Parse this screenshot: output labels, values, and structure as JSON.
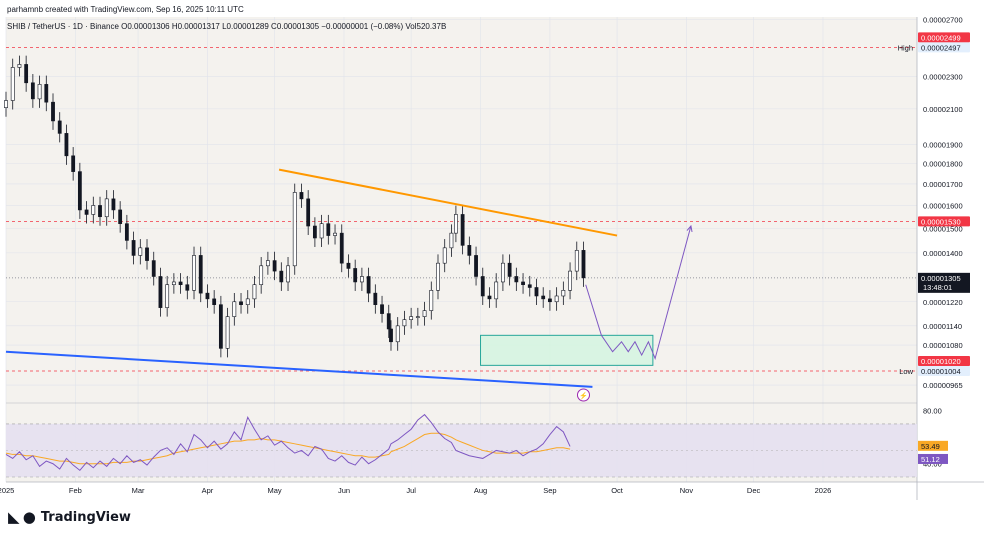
{
  "header": {
    "credit": "parhamnb created with TradingView.com, Sep 16, 2025 10:11 UTC",
    "symbol_line": "SHIB / TetherUS · 1D · Binance  O0.00001306  H0.00001317  L0.00001289  C0.00001305  −0.00000001 (−0.08%)  Vol520.37B"
  },
  "chart_data": {
    "type": "candlestick",
    "ylim": [
      9.2e-06,
      2.72e-05
    ],
    "y_scale": "log",
    "price_ticks": [
      "0.00002700",
      "0.00002300",
      "0.00002100",
      "0.00001900",
      "0.00001800",
      "0.00001700",
      "0.00001600",
      "0.00001500",
      "0.00001400",
      "0.00001220",
      "0.00001140",
      "0.00001080",
      "0.00000965"
    ],
    "month_ticks": [
      "2025",
      "Feb",
      "Mar",
      "Apr",
      "May",
      "Jun",
      "Jul",
      "Aug",
      "Sep",
      "Oct",
      "Nov",
      "Dec",
      "2026"
    ],
    "x_range": [
      "2025-01-01",
      "2026-02-12"
    ],
    "current_price": {
      "label": "0.00001305",
      "countdown": "13:48:01",
      "value": 1.305e-05,
      "color": "#131722"
    },
    "high_marker": {
      "tag": "High",
      "red_label": "0.00002499",
      "label": "0.00002497",
      "value": 2.497e-05
    },
    "low_marker": {
      "tag": "Low",
      "red_label": "0.00001020",
      "label": "0.00001004",
      "value": 1.004e-05
    },
    "resistance_level": {
      "label": "0.00001530",
      "value": 1.53e-05
    },
    "candles_daily_close": [
      [
        "2025-01-01",
        2.15e-05
      ],
      [
        "2025-01-04",
        2.36e-05
      ],
      [
        "2025-01-07",
        2.38e-05
      ],
      [
        "2025-01-10",
        2.26e-05
      ],
      [
        "2025-01-13",
        2.16e-05
      ],
      [
        "2025-01-16",
        2.25e-05
      ],
      [
        "2025-01-19",
        2.14e-05
      ],
      [
        "2025-01-22",
        2.03e-05
      ],
      [
        "2025-01-25",
        1.96e-05
      ],
      [
        "2025-01-28",
        1.84e-05
      ],
      [
        "2025-01-31",
        1.76e-05
      ],
      [
        "2025-02-03",
        1.58e-05
      ],
      [
        "2025-02-06",
        1.56e-05
      ],
      [
        "2025-02-09",
        1.6e-05
      ],
      [
        "2025-02-12",
        1.55e-05
      ],
      [
        "2025-02-15",
        1.63e-05
      ],
      [
        "2025-02-18",
        1.58e-05
      ],
      [
        "2025-02-21",
        1.52e-05
      ],
      [
        "2025-02-24",
        1.45e-05
      ],
      [
        "2025-02-27",
        1.39e-05
      ],
      [
        "2025-03-02",
        1.42e-05
      ],
      [
        "2025-03-05",
        1.37e-05
      ],
      [
        "2025-03-08",
        1.31e-05
      ],
      [
        "2025-03-11",
        1.2e-05
      ],
      [
        "2025-03-14",
        1.28e-05
      ],
      [
        "2025-03-17",
        1.29e-05
      ],
      [
        "2025-03-20",
        1.28e-05
      ],
      [
        "2025-03-23",
        1.26e-05
      ],
      [
        "2025-03-26",
        1.39e-05
      ],
      [
        "2025-03-29",
        1.25e-05
      ],
      [
        "2025-04-01",
        1.23e-05
      ],
      [
        "2025-04-04",
        1.21e-05
      ],
      [
        "2025-04-07",
        1.07e-05
      ],
      [
        "2025-04-10",
        1.17e-05
      ],
      [
        "2025-04-13",
        1.22e-05
      ],
      [
        "2025-04-16",
        1.21e-05
      ],
      [
        "2025-04-19",
        1.23e-05
      ],
      [
        "2025-04-22",
        1.28e-05
      ],
      [
        "2025-04-25",
        1.35e-05
      ],
      [
        "2025-04-28",
        1.37e-05
      ],
      [
        "2025-05-01",
        1.33e-05
      ],
      [
        "2025-05-04",
        1.29e-05
      ],
      [
        "2025-05-07",
        1.35e-05
      ],
      [
        "2025-05-10",
        1.66e-05
      ],
      [
        "2025-05-13",
        1.63e-05
      ],
      [
        "2025-05-16",
        1.51e-05
      ],
      [
        "2025-05-19",
        1.46e-05
      ],
      [
        "2025-05-22",
        1.52e-05
      ],
      [
        "2025-05-25",
        1.47e-05
      ],
      [
        "2025-05-28",
        1.48e-05
      ],
      [
        "2025-05-31",
        1.36e-05
      ],
      [
        "2025-06-03",
        1.34e-05
      ],
      [
        "2025-06-06",
        1.29e-05
      ],
      [
        "2025-06-09",
        1.31e-05
      ],
      [
        "2025-06-12",
        1.25e-05
      ],
      [
        "2025-06-15",
        1.21e-05
      ],
      [
        "2025-06-18",
        1.18e-05
      ],
      [
        "2025-06-21",
        1.13e-05
      ],
      [
        "2025-06-22",
        1.09e-05
      ],
      [
        "2025-06-25",
        1.14e-05
      ],
      [
        "2025-06-28",
        1.16e-05
      ],
      [
        "2025-07-01",
        1.17e-05
      ],
      [
        "2025-07-04",
        1.17e-05
      ],
      [
        "2025-07-07",
        1.19e-05
      ],
      [
        "2025-07-10",
        1.26e-05
      ],
      [
        "2025-07-13",
        1.36e-05
      ],
      [
        "2025-07-16",
        1.42e-05
      ],
      [
        "2025-07-19",
        1.48e-05
      ],
      [
        "2025-07-21",
        1.56e-05
      ],
      [
        "2025-07-24",
        1.43e-05
      ],
      [
        "2025-07-27",
        1.39e-05
      ],
      [
        "2025-07-30",
        1.31e-05
      ],
      [
        "2025-08-02",
        1.24e-05
      ],
      [
        "2025-08-05",
        1.23e-05
      ],
      [
        "2025-08-08",
        1.29e-05
      ],
      [
        "2025-08-11",
        1.36e-05
      ],
      [
        "2025-08-14",
        1.31e-05
      ],
      [
        "2025-08-17",
        1.29e-05
      ],
      [
        "2025-08-20",
        1.28e-05
      ],
      [
        "2025-08-23",
        1.27e-05
      ],
      [
        "2025-08-26",
        1.24e-05
      ],
      [
        "2025-08-29",
        1.23e-05
      ],
      [
        "2025-09-01",
        1.22e-05
      ],
      [
        "2025-09-04",
        1.24e-05
      ],
      [
        "2025-09-07",
        1.26e-05
      ],
      [
        "2025-09-10",
        1.33e-05
      ],
      [
        "2025-09-13",
        1.41e-05
      ],
      [
        "2025-09-16",
        1.305e-05
      ]
    ],
    "lines": [
      {
        "name": "",
        "color": "#ff9800",
        "points": [
          [
            "2025-05-03",
            1.77e-05
          ],
          [
            "2025-10-01",
            1.47e-05
          ]
        ]
      },
      {
        "name": "",
        "color": "#2962ff",
        "points": [
          [
            "2025-01-01",
            1.06e-05
          ],
          [
            "2025-09-20",
            9.6e-06
          ]
        ]
      }
    ],
    "zone": {
      "x": [
        "2025-08-01",
        "2025-10-17"
      ],
      "y": [
        1.02e-05,
        1.11e-05
      ],
      "color": "#26a69a"
    },
    "projection": {
      "color": "#7e57c2",
      "points": [
        [
          "2025-09-17",
          1.28e-05
        ],
        [
          "2025-09-24",
          1.11e-05
        ],
        [
          "2025-09-29",
          1.06e-05
        ],
        [
          "2025-10-03",
          1.09e-05
        ],
        [
          "2025-10-06",
          1.06e-05
        ],
        [
          "2025-10-09",
          1.09e-05
        ],
        [
          "2025-10-12",
          1.05e-05
        ],
        [
          "2025-10-15",
          1.09e-05
        ],
        [
          "2025-10-18",
          1.04e-05
        ],
        [
          "2025-11-03",
          1.51e-05
        ]
      ]
    },
    "rsi": {
      "ylim": [
        30,
        85
      ],
      "ticks": [
        "80.00",
        "40.00"
      ],
      "band": [
        30,
        70
      ],
      "rsi_label": "53.49",
      "rsi_value": 53.49,
      "rsi_color": "#7e57c2",
      "ma_label": "51.12",
      "ma_value": 51.12,
      "ma_color": "#f9a825",
      "rsi_values": [
        47,
        44,
        49,
        43,
        46,
        38,
        42,
        40,
        36,
        44,
        39,
        35,
        41,
        37,
        42,
        38,
        44,
        40,
        46,
        41,
        43,
        39,
        45,
        50,
        52,
        47,
        55,
        49,
        62,
        58,
        52,
        57,
        51,
        55,
        64,
        58,
        75,
        66,
        58,
        61,
        54,
        57,
        52,
        48,
        50,
        46,
        53,
        51,
        44,
        42,
        46,
        41,
        39,
        45,
        40,
        43,
        47,
        51,
        55,
        58,
        62,
        66,
        73,
        77,
        71,
        64,
        59,
        56,
        50,
        48,
        46,
        45,
        44,
        47,
        50,
        49,
        48,
        50,
        46,
        49,
        51,
        55,
        62,
        68,
        64,
        53
      ],
      "ma_values": [
        48,
        47,
        47,
        46,
        46,
        45,
        44,
        43,
        42,
        42,
        41,
        40,
        40,
        40,
        40,
        40,
        41,
        41,
        41,
        42,
        42,
        43,
        44,
        45,
        46,
        48,
        49,
        50,
        51,
        52,
        53,
        54,
        55,
        56,
        57,
        57,
        58,
        58,
        59,
        58,
        58,
        57,
        56,
        55,
        54,
        53,
        52,
        51,
        50,
        49,
        48,
        47,
        46,
        46,
        45,
        45,
        46,
        47,
        49,
        51,
        53,
        56,
        59,
        62,
        63,
        63,
        62,
        60,
        58,
        56,
        54,
        52,
        50,
        49,
        48,
        48,
        48,
        48,
        48,
        49,
        49,
        50,
        51,
        52,
        52,
        51
      ]
    }
  },
  "branding": {
    "mark": "◣ ●",
    "name": "TradingView"
  },
  "colors": {
    "up": "#131722",
    "down": "#131722",
    "grid": "#e0e3eb",
    "bg": "#f4f2ee",
    "red": "#f23645"
  }
}
